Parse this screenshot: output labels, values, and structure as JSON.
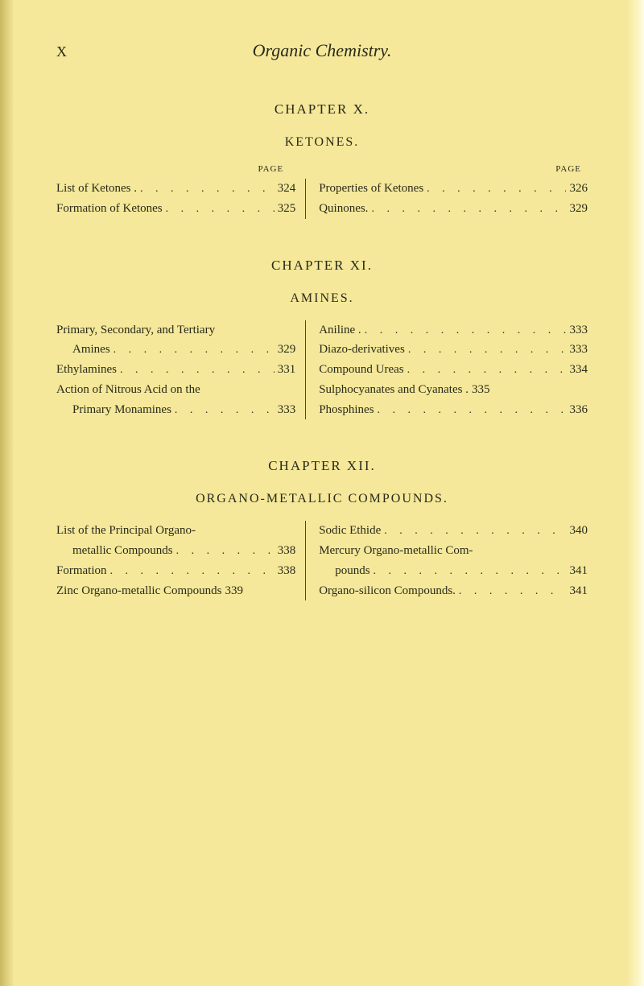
{
  "colors": {
    "paper": "#f5e89a",
    "text": "#2a2a1a",
    "rule": "#4a4a2a"
  },
  "header": {
    "page_numeral": "X",
    "running_title": "Organic Chemistry."
  },
  "chapter10": {
    "title": "CHAPTER X.",
    "subtitle": "KETONES.",
    "page_label": "PAGE",
    "left": [
      {
        "text": "List of Ketones .",
        "page": "324",
        "indent": false
      },
      {
        "text": "Formation of Ketones",
        "page": "325",
        "indent": false
      }
    ],
    "right": [
      {
        "text": "Properties of Ketones",
        "page": "326",
        "indent": false
      },
      {
        "text": "Quinones.",
        "page": "329",
        "indent": false
      }
    ]
  },
  "chapter11": {
    "title": "CHAPTER XI.",
    "subtitle": "AMINES.",
    "left": [
      {
        "text": "Primary, Secondary, and Tertiary",
        "page": "",
        "indent": false
      },
      {
        "text": "Amines",
        "page": "329",
        "indent": true
      },
      {
        "text": "Ethylamines",
        "page": "331",
        "indent": false
      },
      {
        "text": "Action of Nitrous Acid on the",
        "page": "",
        "indent": false
      },
      {
        "text": "Primary Monamines",
        "page": "333",
        "indent": true
      }
    ],
    "right": [
      {
        "text": "Aniline .",
        "page": "333",
        "indent": false
      },
      {
        "text": "Diazo-derivatives",
        "page": "333",
        "indent": false
      },
      {
        "text": "Compound Ureas",
        "page": "334",
        "indent": false
      },
      {
        "text": "Sulphocyanates and Cyanates .",
        "page": "335",
        "indent": false
      },
      {
        "text": "Phosphines",
        "page": "336",
        "indent": false
      }
    ]
  },
  "chapter12": {
    "title": "CHAPTER XII.",
    "subtitle": "ORGANO-METALLIC COMPOUNDS.",
    "left": [
      {
        "text": "List of the Principal Organo-",
        "page": "",
        "indent": false
      },
      {
        "text": "metallic Compounds",
        "page": "338",
        "indent": true
      },
      {
        "text": "Formation",
        "page": "338",
        "indent": false
      },
      {
        "text": "Zinc Organo-metallic Compounds",
        "page": "339",
        "indent": false
      }
    ],
    "right": [
      {
        "text": "Sodic Ethide",
        "page": "340",
        "indent": false
      },
      {
        "text": "Mercury Organo-metallic Com-",
        "page": "",
        "indent": false
      },
      {
        "text": "pounds",
        "page": "341",
        "indent": true
      },
      {
        "text": "Organo-silicon Compounds.",
        "page": "341",
        "indent": false
      }
    ]
  },
  "dots": ". . . . . . . . . . . . . . . . . ."
}
